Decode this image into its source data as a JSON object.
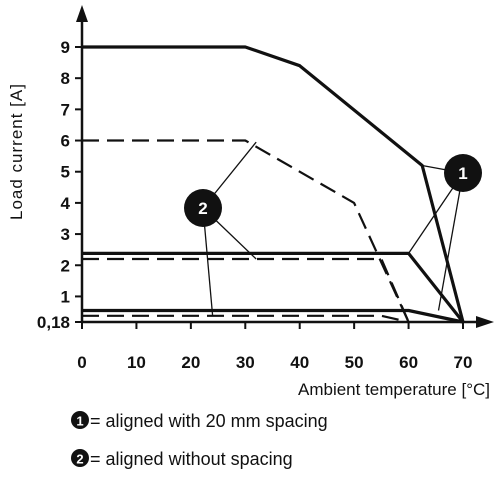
{
  "chart_data": {
    "type": "line",
    "title": "",
    "xlabel": "Ambient temperature [°C]",
    "ylabel": "Load current [A]",
    "x_ticks": [
      "0",
      "10",
      "20",
      "30",
      "40",
      "50",
      "60",
      "70"
    ],
    "y_ticks": [
      {
        "value": 0.18,
        "label": "0,18"
      },
      {
        "value": 1,
        "label": "1"
      },
      {
        "value": 2,
        "label": "2"
      },
      {
        "value": 3,
        "label": "3"
      },
      {
        "value": 4,
        "label": "4"
      },
      {
        "value": 5,
        "label": "5"
      },
      {
        "value": 6,
        "label": "6"
      },
      {
        "value": 7,
        "label": "7"
      },
      {
        "value": 8,
        "label": "8"
      },
      {
        "value": 9,
        "label": "9"
      }
    ],
    "xlim": [
      0,
      70
    ],
    "ylim": [
      0.18,
      9
    ],
    "grid": false,
    "series": [
      {
        "group": "1",
        "style": "solid",
        "points": [
          [
            0,
            9
          ],
          [
            30,
            9
          ],
          [
            40,
            8.4
          ],
          [
            62.5,
            5.2
          ],
          [
            70,
            0.18
          ]
        ]
      },
      {
        "group": "1",
        "style": "solid",
        "points": [
          [
            0,
            2.38
          ],
          [
            60,
            2.38
          ],
          [
            70,
            0.18
          ]
        ]
      },
      {
        "group": "1",
        "style": "solid",
        "points": [
          [
            0,
            0.55
          ],
          [
            60,
            0.55
          ],
          [
            70,
            0.18
          ]
        ]
      },
      {
        "group": "2",
        "style": "dashed",
        "points": [
          [
            0,
            6
          ],
          [
            30,
            6
          ],
          [
            50,
            4
          ],
          [
            60,
            0.18
          ]
        ]
      },
      {
        "group": "2",
        "style": "dashed",
        "points": [
          [
            0,
            2.2
          ],
          [
            55,
            2.2
          ],
          [
            60,
            0.18
          ]
        ]
      },
      {
        "group": "2",
        "style": "dashed",
        "points": [
          [
            0,
            0.38
          ],
          [
            55,
            0.38
          ],
          [
            60,
            0.18
          ]
        ]
      }
    ],
    "markers": [
      {
        "label": "1",
        "leader_targets": [
          [
            62.5,
            5.2
          ],
          [
            60,
            2.38
          ],
          [
            65.5,
            0.55
          ]
        ]
      },
      {
        "label": "2",
        "leader_targets": [
          [
            32,
            5.95
          ],
          [
            32,
            2.2
          ],
          [
            24,
            0.38
          ]
        ]
      }
    ],
    "legend": [
      {
        "marker": "1",
        "text": "= aligned with 20 mm spacing"
      },
      {
        "marker": "2",
        "text": "= aligned without spacing"
      }
    ]
  }
}
